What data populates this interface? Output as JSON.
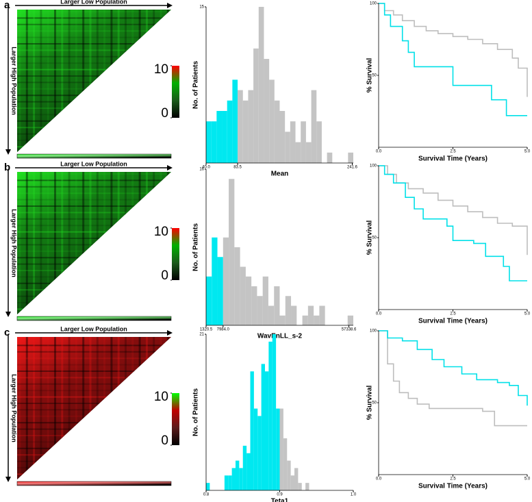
{
  "panel_labels": [
    "a",
    "b",
    "c"
  ],
  "chart_data": [
    {
      "type": "heatmap",
      "x_label": "Larger Low Population",
      "y_label": "Larger High Population",
      "heat_color": "#22e022",
      "colorbar_colors": [
        "#000000",
        "#1a5a1a",
        "#00b000",
        "#ff0000"
      ],
      "colorbar_ticks": [
        0,
        10
      ],
      "colorbar_lim": [
        0,
        10
      ]
    },
    {
      "type": "histogram",
      "x_label": "Mean",
      "bins": [
        40,
        47.25,
        54.5,
        61.75,
        69,
        76.25,
        83.5,
        90.75,
        98,
        105.25,
        112.5,
        119.75,
        127,
        134.25,
        141.5,
        148.75,
        156,
        163.25,
        170.5,
        177.75,
        185,
        192.25,
        199.5,
        206.75,
        214,
        221.25,
        228.5,
        235.75,
        243
      ],
      "values": [
        4,
        4,
        5,
        5,
        6,
        8,
        7,
        6,
        7,
        11,
        15,
        10,
        8,
        6,
        5,
        3,
        4,
        2,
        4,
        2,
        7,
        4,
        0,
        1,
        0,
        0,
        0,
        1
      ],
      "cutoff": 83.5,
      "colors": [
        "#00e8f0",
        "#c4c4c4"
      ],
      "xlim": [
        40,
        243
      ],
      "xticks": [
        {
          "value": 40,
          "label": "40.0"
        },
        83.5,
        241.6
      ],
      "ylim": [
        0,
        15
      ],
      "yticks": [
        15
      ],
      "y_label": "No. of Patients"
    },
    {
      "type": "survival",
      "x_label": "Survival Time (Years)",
      "y_label": "% Survival",
      "xlim": [
        0,
        5
      ],
      "xticks": [
        {
          "value": 0,
          "label": "0.0"
        },
        2.5,
        {
          "value": 5,
          "label": "5.0"
        }
      ],
      "ylim": [
        0,
        100
      ],
      "yticks": [
        50,
        100
      ],
      "series": [
        {
          "color": "#bdbdbd",
          "x": [
            0,
            0.2,
            0.5,
            0.8,
            1.2,
            1.6,
            2,
            2.5,
            3,
            3.5,
            4,
            4.5,
            4.7,
            5
          ],
          "y": [
            100,
            95,
            92,
            88,
            84,
            81,
            79,
            77,
            75,
            72,
            68,
            62,
            55,
            35
          ]
        },
        {
          "color": "#00e0e8",
          "x": [
            0,
            0.2,
            0.4,
            0.8,
            1,
            1.2,
            2.3,
            2.5,
            3.4,
            3.8,
            4.3,
            5
          ],
          "y": [
            100,
            92,
            84,
            74,
            66,
            56,
            56,
            43,
            43,
            33,
            22,
            22
          ]
        }
      ]
    },
    {
      "type": "heatmap",
      "x_label": "Larger Low Population",
      "y_label": "Larger High Population",
      "heat_color": "#22e022",
      "colorbar_colors": [
        "#000000",
        "#1a5a1a",
        "#00b000",
        "#ff0000"
      ],
      "colorbar_ticks": [
        0,
        10
      ],
      "colorbar_lim": [
        0,
        10
      ]
    },
    {
      "type": "histogram",
      "x_label": "WavEnLL_s-2",
      "bins": [
        1320.5,
        3541.7,
        5762.8,
        7984.0,
        10205.2,
        12426.4,
        14647.6,
        16868.8,
        19090.0,
        21311.2,
        23532.4,
        25753.6,
        27974.8,
        30196.0,
        32417.2,
        34638.4,
        36859.6,
        39080.8,
        41302.0,
        43523.2,
        45744.4,
        47965.6,
        50186.8,
        52408.0,
        54629.2,
        56850.4,
        59071.6
      ],
      "values": [
        5,
        9,
        7,
        9,
        15,
        8,
        6,
        5,
        4,
        3,
        5,
        2,
        4,
        1,
        3,
        2,
        0,
        1,
        2,
        1,
        2,
        0,
        0,
        0,
        0,
        1
      ],
      "cutoff": 7984.0,
      "colors": [
        "#00e8f0",
        "#c4c4c4"
      ],
      "xlim": [
        1320.5,
        59071.6
      ],
      "xticks": [
        1320.5,
        {
          "value": 7984,
          "label": "7984.0"
        },
        57338.6
      ],
      "ylim": [
        0,
        16
      ],
      "yticks": [
        16
      ],
      "y_label": "No. of Patients"
    },
    {
      "type": "survival",
      "x_label": "Survival Time (Years)",
      "y_label": "% Survival",
      "xlim": [
        0,
        5
      ],
      "xticks": [
        {
          "value": 0,
          "label": "0.0"
        },
        2.5,
        {
          "value": 5,
          "label": "5.0"
        }
      ],
      "ylim": [
        0,
        100
      ],
      "yticks": [
        50,
        100
      ],
      "series": [
        {
          "color": "#bdbdbd",
          "x": [
            0,
            0.3,
            0.6,
            1,
            1.5,
            2,
            2.5,
            3,
            3.5,
            4,
            4.5,
            5
          ],
          "y": [
            100,
            94,
            88,
            84,
            81,
            76,
            72,
            68,
            64,
            60,
            58,
            38
          ]
        },
        {
          "color": "#00e0e8",
          "x": [
            0,
            0.2,
            0.5,
            0.9,
            1.2,
            1.5,
            2.3,
            2.5,
            3.2,
            3.6,
            4.2,
            4.4,
            5
          ],
          "y": [
            100,
            94,
            88,
            78,
            70,
            63,
            58,
            48,
            46,
            37,
            30,
            20,
            20
          ]
        }
      ]
    },
    {
      "type": "heatmap",
      "x_label": "Larger Low Population",
      "y_label": "Larger High Population",
      "heat_color": "#f01818",
      "colorbar_colors": [
        "#000000",
        "#5a1a1a",
        "#c00000",
        "#00ff00"
      ],
      "colorbar_ticks": [
        0,
        10
      ],
      "colorbar_lim": [
        0,
        10
      ]
    },
    {
      "type": "histogram",
      "x_label": "Teta1",
      "bins": [
        0.8,
        0.805,
        0.81,
        0.815,
        0.82,
        0.825,
        0.83,
        0.835,
        0.84,
        0.845,
        0.85,
        0.855,
        0.86,
        0.865,
        0.87,
        0.875,
        0.88,
        0.885,
        0.89,
        0.895,
        0.9,
        0.905,
        0.91,
        0.915,
        0.92,
        0.925,
        0.93,
        0.935,
        0.94
      ],
      "values": [
        1,
        0,
        0,
        0,
        0,
        2,
        2,
        3,
        4,
        3,
        6,
        5,
        16,
        11,
        10,
        17,
        16,
        20,
        21,
        11,
        11,
        7,
        4,
        2,
        3,
        1,
        0,
        1
      ],
      "cutoff": 0.9,
      "colors": [
        "#00e8f0",
        "#c4c4c4"
      ],
      "xlim": [
        0.8,
        1.0
      ],
      "xticks": [
        0.8,
        0.9,
        {
          "value": 1,
          "label": "1.0"
        }
      ],
      "ylim": [
        0,
        21
      ],
      "yticks": [
        21
      ],
      "y_label": "No. of Patients"
    },
    {
      "type": "survival",
      "x_label": "Survival Time (Years)",
      "y_label": "% Survival",
      "xlim": [
        0,
        5
      ],
      "xticks": [
        {
          "value": 0,
          "label": "0.0"
        },
        2.5,
        {
          "value": 5,
          "label": "5.0"
        }
      ],
      "ylim": [
        0,
        100
      ],
      "yticks": [
        50,
        100
      ],
      "series": [
        {
          "color": "#bdbdbd",
          "x": [
            0,
            0.3,
            0.5,
            0.7,
            1,
            1.3,
            1.7,
            3.5,
            3.9,
            5
          ],
          "y": [
            100,
            77,
            65,
            57,
            53,
            49,
            46,
            44,
            34,
            34
          ]
        },
        {
          "color": "#00e0e8",
          "x": [
            0,
            0.3,
            0.8,
            1.3,
            1.8,
            2.2,
            2.8,
            3.3,
            4,
            4.4,
            4.7,
            5
          ],
          "y": [
            100,
            95,
            93,
            87,
            80,
            75,
            70,
            66,
            64,
            62,
            55,
            48
          ]
        }
      ]
    }
  ]
}
